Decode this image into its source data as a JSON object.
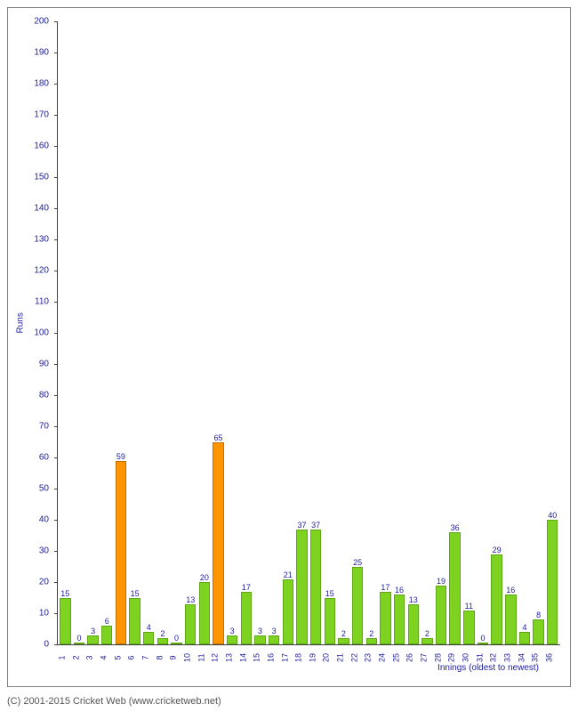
{
  "chart": {
    "type": "bar",
    "x_axis_title": "Innings (oldest to newest)",
    "y_axis_title": "Runs",
    "ylim": [
      0,
      200
    ],
    "ytick_step": 10,
    "background_color": "#ffffff",
    "frame_border_color": "#808080",
    "axis_color": "#404040",
    "text_color": "#2020a0",
    "bar_width": 0.85,
    "green_fill": "#7ed321",
    "green_border": "#5fa815",
    "orange_fill": "#ff9500",
    "orange_border": "#c27100",
    "label_fontsize": 9,
    "axis_fontsize": 10,
    "bars": [
      {
        "x": "1",
        "value": 15,
        "color": "green"
      },
      {
        "x": "2",
        "value": 0,
        "color": "green"
      },
      {
        "x": "3",
        "value": 3,
        "color": "green"
      },
      {
        "x": "4",
        "value": 6,
        "color": "green"
      },
      {
        "x": "5",
        "value": 59,
        "color": "orange"
      },
      {
        "x": "6",
        "value": 15,
        "color": "green"
      },
      {
        "x": "7",
        "value": 4,
        "color": "green"
      },
      {
        "x": "8",
        "value": 2,
        "color": "green"
      },
      {
        "x": "9",
        "value": 0,
        "color": "green"
      },
      {
        "x": "10",
        "value": 13,
        "color": "green"
      },
      {
        "x": "11",
        "value": 20,
        "color": "green"
      },
      {
        "x": "12",
        "value": 65,
        "color": "orange"
      },
      {
        "x": "13",
        "value": 3,
        "color": "green"
      },
      {
        "x": "14",
        "value": 17,
        "color": "green"
      },
      {
        "x": "15",
        "value": 3,
        "color": "green"
      },
      {
        "x": "16",
        "value": 3,
        "color": "green"
      },
      {
        "x": "17",
        "value": 21,
        "color": "green"
      },
      {
        "x": "18",
        "value": 37,
        "color": "green"
      },
      {
        "x": "19",
        "value": 37,
        "color": "green"
      },
      {
        "x": "20",
        "value": 15,
        "color": "green"
      },
      {
        "x": "21",
        "value": 2,
        "color": "green"
      },
      {
        "x": "22",
        "value": 25,
        "color": "green"
      },
      {
        "x": "23",
        "value": 2,
        "color": "green"
      },
      {
        "x": "24",
        "value": 17,
        "color": "green"
      },
      {
        "x": "25",
        "value": 16,
        "color": "green"
      },
      {
        "x": "26",
        "value": 13,
        "color": "green"
      },
      {
        "x": "27",
        "value": 2,
        "color": "green"
      },
      {
        "x": "28",
        "value": 19,
        "color": "green"
      },
      {
        "x": "29",
        "value": 36,
        "color": "green"
      },
      {
        "x": "30",
        "value": 11,
        "color": "green"
      },
      {
        "x": "31",
        "value": 0,
        "color": "green"
      },
      {
        "x": "32",
        "value": 29,
        "color": "green"
      },
      {
        "x": "33",
        "value": 16,
        "color": "green"
      },
      {
        "x": "34",
        "value": 4,
        "color": "green"
      },
      {
        "x": "35",
        "value": 8,
        "color": "green"
      },
      {
        "x": "36",
        "value": 40,
        "color": "green"
      }
    ]
  },
  "copyright": "(C) 2001-2015 Cricket Web (www.cricketweb.net)"
}
